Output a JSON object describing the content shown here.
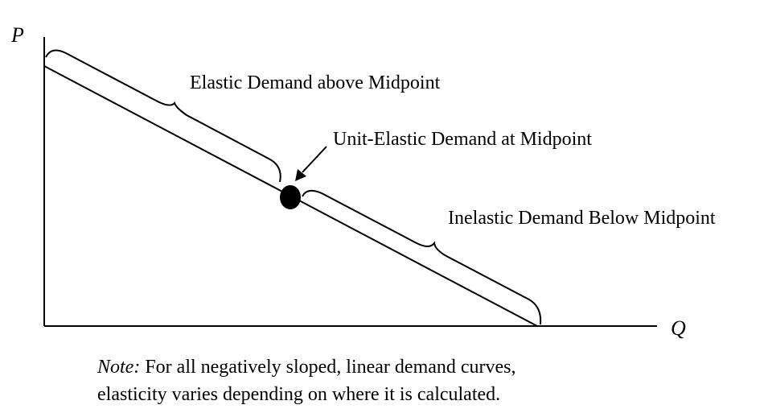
{
  "axes": {
    "y_label": "P",
    "x_label": "Q"
  },
  "labels": {
    "elastic": "Elastic Demand above Midpoint",
    "unit_elastic": "Unit-Elastic Demand at Midpoint",
    "inelastic": "Inelastic Demand Below Midpoint"
  },
  "note": {
    "prefix": "Note:",
    "line1_rest": " For all negatively sloped, linear demand curves,",
    "line2": "elasticity varies depending on where it is calculated."
  },
  "colors": {
    "ink": "#000000",
    "background": "#ffffff"
  }
}
